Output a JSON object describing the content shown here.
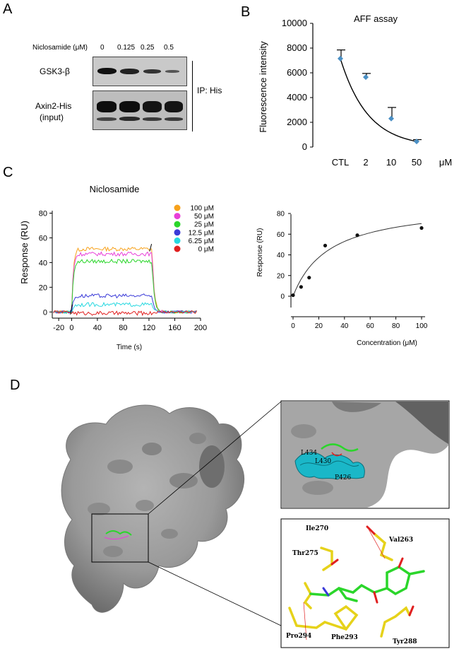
{
  "panels": {
    "a": "A",
    "b": "B",
    "c": "C",
    "d": "D"
  },
  "panel_a": {
    "concentration_label": "Niclosamide (μM)",
    "concentrations": [
      "0",
      "0.125",
      "0.25",
      "0.5"
    ],
    "rows": [
      {
        "label_lines": [
          "GSK3-β"
        ],
        "intensities": [
          0.95,
          0.85,
          0.6,
          0.3
        ]
      },
      {
        "label_lines": [
          "Axin2-His",
          "(input)"
        ],
        "intensities": [
          1.0,
          1.0,
          1.0,
          1.0
        ]
      }
    ],
    "ip_label": "IP: His"
  },
  "chart_data": [
    {
      "id": "aff",
      "type": "scatter",
      "title": "AFF assay",
      "xlabel": "",
      "ylabel": "Fluorescence intensity",
      "x_unit": "μM",
      "categories": [
        "CTL",
        "2",
        "10",
        "50"
      ],
      "values": [
        7150,
        5650,
        2300,
        450
      ],
      "error_upper": [
        7850,
        5950,
        3200,
        600
      ],
      "yticks": [
        0,
        2000,
        4000,
        6000,
        8000,
        10000
      ],
      "ylim": [
        0,
        10000
      ],
      "fit": "exponential decay",
      "grid": false
    },
    {
      "id": "spr",
      "type": "line",
      "title": "Niclosamide",
      "xlabel": "Time (s)",
      "ylabel": "Response (RU)",
      "xticks": [
        -20,
        0,
        40,
        80,
        120,
        160,
        200
      ],
      "yticks": [
        0,
        20,
        40,
        60,
        80
      ],
      "xlim": [
        -30,
        200
      ],
      "ylim": [
        -5,
        82
      ],
      "association_window": [
        0,
        125
      ],
      "legend_position": "top-right",
      "series": [
        {
          "name": "100 μM",
          "color": "#f7a21c",
          "plateau": 51
        },
        {
          "name": "50 μM",
          "color": "#e83fd8",
          "plateau": 47
        },
        {
          "name": "25 μM",
          "color": "#2bd62b",
          "plateau": 41
        },
        {
          "name": "12.5 μM",
          "color": "#3a3ad8",
          "plateau": 13
        },
        {
          "name": "6.25 μM",
          "color": "#28d8e0",
          "plateau": 6
        },
        {
          "name": "0 μM",
          "color": "#e02020",
          "plateau": -1
        }
      ]
    },
    {
      "id": "binding",
      "type": "scatter",
      "title": "",
      "xlabel": "Concentration (μM)",
      "ylabel": "Response (RU)",
      "x": [
        0,
        6.25,
        12.5,
        25,
        50,
        100
      ],
      "values": [
        1,
        9,
        18,
        49,
        59,
        66
      ],
      "xticks": [
        0,
        20,
        40,
        60,
        80,
        100
      ],
      "yticks": [
        0,
        20,
        40,
        60,
        80
      ],
      "xlim": [
        0,
        100
      ],
      "ylim": [
        0,
        80
      ],
      "fit": "saturation binding",
      "grid": false
    }
  ],
  "panel_d": {
    "inset_top_labels": [
      "L434",
      "L430",
      "P426"
    ],
    "residues": [
      "Ile270",
      "Val263",
      "Thr275",
      "Pro294",
      "Phe293",
      "Tyr288"
    ]
  }
}
